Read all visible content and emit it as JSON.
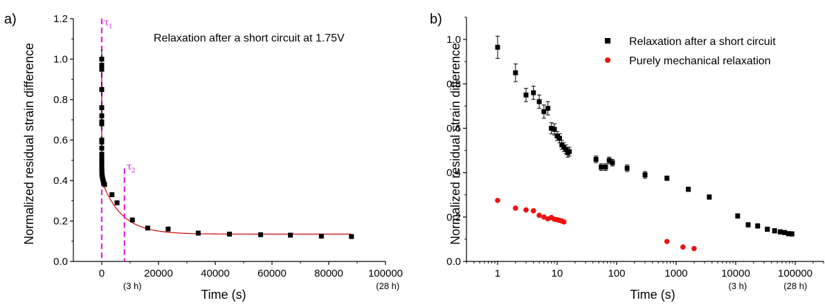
{
  "chart_data": [
    {
      "type": "scatter",
      "panel_label": "a)",
      "annotation": "Relaxation after a short circuit at 1.75V",
      "xlabel": "Time (s)",
      "ylabel": "Normalized residual strain difference",
      "xlim": [
        -10000,
        100000
      ],
      "ylim": [
        0.0,
        1.2
      ],
      "x_ticks": [
        0,
        20000,
        40000,
        60000,
        80000,
        100000
      ],
      "x_tick_labels": [
        "0",
        "20000",
        "40000",
        "60000",
        "80000",
        "100000"
      ],
      "y_ticks": [
        0.0,
        0.2,
        0.4,
        0.6,
        0.8,
        1.0,
        1.2
      ],
      "y_tick_labels": [
        "0.0",
        "0.2",
        "0.4",
        "0.6",
        "0.8",
        "1.0",
        "1.2"
      ],
      "x_notes": [
        {
          "x": 10800,
          "text": "(3 h)"
        },
        {
          "x": 100800,
          "text": "(28 h)"
        }
      ],
      "marker_color": "#000000",
      "fit_color": "#cc0000",
      "tau_color": "#e020e0",
      "tau_lines": [
        {
          "x": 0,
          "label": "τ",
          "sub": "1",
          "y_top": 1.2
        },
        {
          "x": 8000,
          "label": "τ",
          "sub": "2",
          "y_top": 0.46
        }
      ],
      "fit": {
        "a1": 0.6,
        "t1": 25,
        "a2": 0.265,
        "t2": 7000,
        "c": 0.135
      },
      "series": [
        {
          "name": "Relaxation after a short circuit at 1.75V",
          "x": [
            1,
            2,
            3,
            4,
            5,
            6,
            7,
            8,
            9,
            10,
            11,
            12,
            13,
            14,
            15,
            16,
            20,
            40,
            60,
            80,
            100,
            200,
            300,
            500,
            700,
            1000,
            3600,
            5400,
            10800,
            16200,
            23400,
            34000,
            45000,
            56000,
            66500,
            77400,
            88000
          ],
          "y": [
            0.97,
            1.0,
            0.95,
            0.85,
            0.76,
            0.72,
            0.68,
            0.69,
            0.6,
            0.59,
            0.56,
            0.53,
            0.51,
            0.5,
            0.49,
            0.48,
            0.46,
            0.45,
            0.44,
            0.43,
            0.43,
            0.42,
            0.41,
            0.4,
            0.39,
            0.38,
            0.33,
            0.29,
            0.205,
            0.165,
            0.16,
            0.14,
            0.135,
            0.132,
            0.13,
            0.125,
            0.123
          ],
          "err": [
            0.05,
            0.05,
            0.04,
            0.04,
            0.03,
            0.03,
            0.03,
            0.03,
            0.02,
            0.02,
            0.02,
            0.02,
            0.02,
            0.02,
            0.02,
            0.02,
            0.02,
            0.02,
            0.01,
            0.01,
            0.01,
            0.01,
            0.01,
            0.01,
            0.01,
            0.01,
            0.01,
            0.01,
            0.01,
            0.01,
            0.01,
            0.01,
            0.01,
            0.01,
            0.01,
            0.01,
            0.01
          ]
        }
      ]
    },
    {
      "type": "scatter",
      "panel_label": "b)",
      "xlabel": "Time (s)",
      "ylabel": "Normalized residual strain difference",
      "xscale": "log",
      "xlim": [
        0.3,
        300000
      ],
      "ylim": [
        0.0,
        1.1
      ],
      "x_ticks": [
        1,
        10,
        100,
        1000,
        10000,
        100000
      ],
      "x_tick_labels": [
        "1",
        "10",
        "100",
        "1000",
        "10000",
        "100000"
      ],
      "y_ticks": [
        0.0,
        0.2,
        0.4,
        0.6,
        0.8,
        1.0
      ],
      "y_tick_labels": [
        "0.0",
        "0.2",
        "0.4",
        "0.6",
        "0.8",
        "1.0"
      ],
      "x_notes": [
        {
          "x": 10800,
          "text": "(3 h)"
        },
        {
          "x": 100800,
          "text": "(28 h)"
        }
      ],
      "legend_placement": "top-right",
      "series": [
        {
          "name": "Relaxation after a short circuit",
          "color": "#000000",
          "marker": "square",
          "x": [
            1,
            2,
            3,
            4,
            5,
            6,
            7,
            8,
            9,
            10,
            11,
            12,
            13,
            14,
            15,
            16,
            45,
            55,
            65,
            75,
            85,
            150,
            300,
            700,
            1600,
            3600,
            10800,
            16200,
            23400,
            34000,
            45000,
            56000,
            66500,
            77400,
            88000
          ],
          "y": [
            0.965,
            0.85,
            0.75,
            0.76,
            0.72,
            0.675,
            0.69,
            0.6,
            0.595,
            0.565,
            0.555,
            0.525,
            0.515,
            0.505,
            0.49,
            0.495,
            0.46,
            0.425,
            0.425,
            0.455,
            0.445,
            0.42,
            0.39,
            0.375,
            0.325,
            0.29,
            0.205,
            0.165,
            0.16,
            0.145,
            0.138,
            0.133,
            0.13,
            0.125,
            0.124
          ],
          "err": [
            0.05,
            0.04,
            0.03,
            0.03,
            0.03,
            0.03,
            0.03,
            0.025,
            0.025,
            0.02,
            0.02,
            0.02,
            0.02,
            0.02,
            0.02,
            0.02,
            0.015,
            0.015,
            0.015,
            0.015,
            0.015,
            0.015,
            0.015,
            0.01,
            0.01,
            0.01,
            0.01,
            0.01,
            0.01,
            0.01,
            0.01,
            0.01,
            0.01,
            0.01,
            0.01
          ]
        },
        {
          "name": "Purely mechanical relaxation",
          "color": "#ee1111",
          "marker": "circle",
          "x": [
            1,
            2,
            3,
            4,
            5,
            6,
            7,
            8,
            9,
            10,
            11,
            12,
            13,
            700,
            1300,
            2000
          ],
          "y": [
            0.275,
            0.24,
            0.232,
            0.228,
            0.208,
            0.2,
            0.192,
            0.198,
            0.19,
            0.188,
            0.185,
            0.182,
            0.178,
            0.09,
            0.065,
            0.058
          ],
          "err": [
            0.012,
            0.01,
            0.008,
            0.008,
            0.008,
            0.007,
            0.007,
            0.007,
            0.007,
            0.007,
            0.007,
            0.007,
            0.007,
            0.005,
            0.005,
            0.005
          ]
        }
      ]
    }
  ]
}
